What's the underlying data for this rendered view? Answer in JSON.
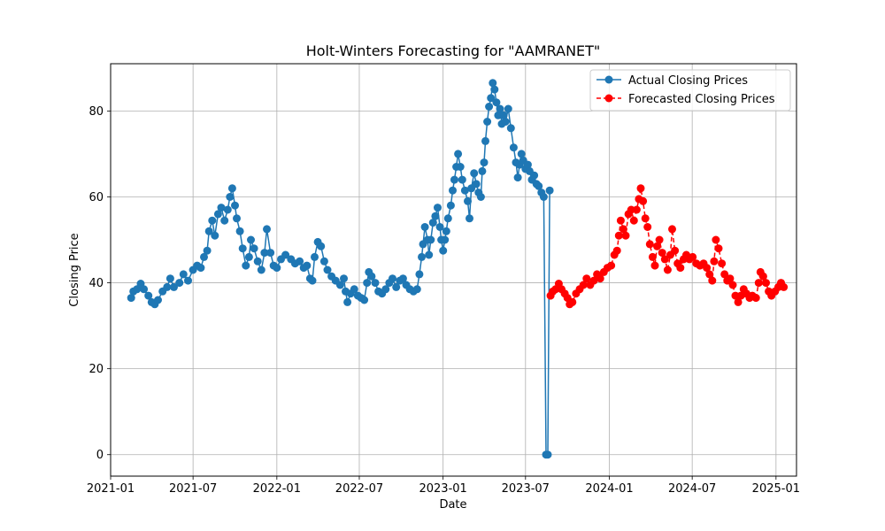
{
  "chart_data": {
    "type": "line",
    "title": "Holt-Winters Forecasting for \"AAMRANET\"",
    "xlabel": "Date",
    "ylabel": "Closing Price",
    "xlim": [
      "2021-01-01",
      "2025-02-15"
    ],
    "ylim": [
      -5,
      91
    ],
    "x_ticks": [
      "2021-01",
      "2021-07",
      "2022-01",
      "2022-07",
      "2023-01",
      "2023-07",
      "2024-01",
      "2024-07",
      "2025-01"
    ],
    "y_ticks": [
      0,
      20,
      40,
      60,
      80
    ],
    "grid": true,
    "legend_position": "top-right",
    "series": [
      {
        "name": "Actual Closing Prices",
        "color": "#1f77b4",
        "marker": "circle",
        "line": "solid",
        "points": [
          [
            "2021-02-15",
            36.5
          ],
          [
            "2021-02-20",
            38.0
          ],
          [
            "2021-02-28",
            38.5
          ],
          [
            "2021-03-08",
            39.8
          ],
          [
            "2021-03-15",
            38.5
          ],
          [
            "2021-03-25",
            37.0
          ],
          [
            "2021-04-01",
            35.5
          ],
          [
            "2021-04-08",
            35.0
          ],
          [
            "2021-04-15",
            36.0
          ],
          [
            "2021-04-25",
            38.0
          ],
          [
            "2021-05-05",
            39.0
          ],
          [
            "2021-05-12",
            41.0
          ],
          [
            "2021-05-20",
            39.0
          ],
          [
            "2021-06-01",
            40.0
          ],
          [
            "2021-06-10",
            42.0
          ],
          [
            "2021-06-20",
            40.5
          ],
          [
            "2021-07-01",
            43.0
          ],
          [
            "2021-07-10",
            44.0
          ],
          [
            "2021-07-18",
            43.5
          ],
          [
            "2021-07-25",
            46.0
          ],
          [
            "2021-08-01",
            47.5
          ],
          [
            "2021-08-05",
            52.0
          ],
          [
            "2021-08-12",
            54.5
          ],
          [
            "2021-08-18",
            51.0
          ],
          [
            "2021-08-25",
            56.0
          ],
          [
            "2021-09-01",
            57.5
          ],
          [
            "2021-09-08",
            54.5
          ],
          [
            "2021-09-15",
            57.0
          ],
          [
            "2021-09-20",
            60.0
          ],
          [
            "2021-09-25",
            62.0
          ],
          [
            "2021-10-01",
            58.0
          ],
          [
            "2021-10-05",
            55.0
          ],
          [
            "2021-10-12",
            52.0
          ],
          [
            "2021-10-18",
            48.0
          ],
          [
            "2021-10-25",
            44.0
          ],
          [
            "2021-11-01",
            46.0
          ],
          [
            "2021-11-05",
            50.0
          ],
          [
            "2021-11-12",
            48.0
          ],
          [
            "2021-11-20",
            45.0
          ],
          [
            "2021-11-28",
            43.0
          ],
          [
            "2021-12-05",
            47.0
          ],
          [
            "2021-12-10",
            52.5
          ],
          [
            "2021-12-18",
            47.0
          ],
          [
            "2021-12-25",
            44.0
          ],
          [
            "2022-01-01",
            43.5
          ],
          [
            "2022-01-10",
            45.5
          ],
          [
            "2022-01-20",
            46.5
          ],
          [
            "2022-02-01",
            45.5
          ],
          [
            "2022-02-10",
            44.5
          ],
          [
            "2022-02-20",
            45.0
          ],
          [
            "2022-03-01",
            43.5
          ],
          [
            "2022-03-08",
            44.0
          ],
          [
            "2022-03-15",
            41.0
          ],
          [
            "2022-03-20",
            40.5
          ],
          [
            "2022-03-25",
            46.0
          ],
          [
            "2022-04-01",
            49.5
          ],
          [
            "2022-04-08",
            48.5
          ],
          [
            "2022-04-15",
            45.0
          ],
          [
            "2022-04-22",
            43.0
          ],
          [
            "2022-05-01",
            41.5
          ],
          [
            "2022-05-10",
            40.5
          ],
          [
            "2022-05-20",
            39.5
          ],
          [
            "2022-05-28",
            41.0
          ],
          [
            "2022-06-01",
            38.0
          ],
          [
            "2022-06-05",
            35.5
          ],
          [
            "2022-06-12",
            37.5
          ],
          [
            "2022-06-20",
            38.5
          ],
          [
            "2022-06-28",
            37.0
          ],
          [
            "2022-07-05",
            36.5
          ],
          [
            "2022-07-12",
            36.0
          ],
          [
            "2022-07-18",
            40.0
          ],
          [
            "2022-07-22",
            42.5
          ],
          [
            "2022-07-28",
            41.5
          ],
          [
            "2022-08-05",
            40.0
          ],
          [
            "2022-08-12",
            38.0
          ],
          [
            "2022-08-20",
            37.5
          ],
          [
            "2022-08-28",
            38.5
          ],
          [
            "2022-09-05",
            40.0
          ],
          [
            "2022-09-12",
            41.0
          ],
          [
            "2022-09-20",
            39.0
          ],
          [
            "2022-09-28",
            40.5
          ],
          [
            "2022-10-05",
            41.0
          ],
          [
            "2022-10-12",
            39.5
          ],
          [
            "2022-10-20",
            38.5
          ],
          [
            "2022-10-28",
            38.0
          ],
          [
            "2022-11-05",
            38.5
          ],
          [
            "2022-11-10",
            42.0
          ],
          [
            "2022-11-15",
            46.0
          ],
          [
            "2022-11-18",
            49.0
          ],
          [
            "2022-11-22",
            53.0
          ],
          [
            "2022-11-28",
            50.0
          ],
          [
            "2022-12-01",
            46.5
          ],
          [
            "2022-12-05",
            50.0
          ],
          [
            "2022-12-10",
            54.0
          ],
          [
            "2022-12-15",
            55.5
          ],
          [
            "2022-12-20",
            57.5
          ],
          [
            "2022-12-25",
            53.0
          ],
          [
            "2022-12-28",
            50.0
          ],
          [
            "2023-01-01",
            47.5
          ],
          [
            "2023-01-05",
            50.0
          ],
          [
            "2023-01-08",
            52.0
          ],
          [
            "2023-01-12",
            55.0
          ],
          [
            "2023-01-18",
            58.0
          ],
          [
            "2023-01-22",
            61.5
          ],
          [
            "2023-01-26",
            64.0
          ],
          [
            "2023-01-30",
            67.0
          ],
          [
            "2023-02-03",
            70.0
          ],
          [
            "2023-02-08",
            67.0
          ],
          [
            "2023-02-12",
            64.0
          ],
          [
            "2023-02-18",
            61.5
          ],
          [
            "2023-02-24",
            59.0
          ],
          [
            "2023-02-28",
            55.0
          ],
          [
            "2023-03-04",
            62.0
          ],
          [
            "2023-03-10",
            65.5
          ],
          [
            "2023-03-15",
            63.0
          ],
          [
            "2023-03-20",
            61.0
          ],
          [
            "2023-03-25",
            60.0
          ],
          [
            "2023-03-28",
            66.0
          ],
          [
            "2023-04-01",
            68.0
          ],
          [
            "2023-04-04",
            73.0
          ],
          [
            "2023-04-08",
            77.5
          ],
          [
            "2023-04-12",
            81.0
          ],
          [
            "2023-04-16",
            83.0
          ],
          [
            "2023-04-20",
            86.5
          ],
          [
            "2023-04-24",
            85.0
          ],
          [
            "2023-04-28",
            82.0
          ],
          [
            "2023-05-02",
            79.0
          ],
          [
            "2023-05-06",
            80.5
          ],
          [
            "2023-05-10",
            77.0
          ],
          [
            "2023-05-14",
            79.0
          ],
          [
            "2023-05-18",
            77.5
          ],
          [
            "2023-05-24",
            80.5
          ],
          [
            "2023-05-30",
            76.0
          ],
          [
            "2023-06-05",
            71.5
          ],
          [
            "2023-06-10",
            68.0
          ],
          [
            "2023-06-14",
            64.5
          ],
          [
            "2023-06-18",
            67.5
          ],
          [
            "2023-06-22",
            70.0
          ],
          [
            "2023-06-26",
            68.5
          ],
          [
            "2023-07-01",
            66.5
          ],
          [
            "2023-07-06",
            67.5
          ],
          [
            "2023-07-10",
            66.0
          ],
          [
            "2023-07-15",
            64.0
          ],
          [
            "2023-07-20",
            65.0
          ],
          [
            "2023-07-25",
            63.0
          ],
          [
            "2023-07-30",
            62.5
          ],
          [
            "2023-08-05",
            61.0
          ],
          [
            "2023-08-10",
            60.0
          ],
          [
            "2023-08-15",
            0.0
          ],
          [
            "2023-08-19",
            0.0
          ],
          [
            "2023-08-23",
            61.5
          ]
        ]
      },
      {
        "name": "Forecasted Closing Prices",
        "color": "#ff0000",
        "marker": "circle",
        "line": "dashed",
        "points": [
          [
            "2023-08-25",
            37.0
          ],
          [
            "2023-08-30",
            38.0
          ],
          [
            "2023-09-05",
            38.5
          ],
          [
            "2023-09-12",
            39.8
          ],
          [
            "2023-09-18",
            38.5
          ],
          [
            "2023-09-25",
            37.5
          ],
          [
            "2023-10-01",
            36.5
          ],
          [
            "2023-10-06",
            35.0
          ],
          [
            "2023-10-12",
            35.5
          ],
          [
            "2023-10-20",
            37.5
          ],
          [
            "2023-10-28",
            38.5
          ],
          [
            "2023-11-05",
            39.5
          ],
          [
            "2023-11-12",
            41.0
          ],
          [
            "2023-11-20",
            39.5
          ],
          [
            "2023-11-28",
            40.5
          ],
          [
            "2023-12-05",
            42.0
          ],
          [
            "2023-12-12",
            41.0
          ],
          [
            "2023-12-20",
            42.5
          ],
          [
            "2023-12-28",
            43.5
          ],
          [
            "2024-01-05",
            44.0
          ],
          [
            "2024-01-12",
            46.5
          ],
          [
            "2024-01-18",
            47.5
          ],
          [
            "2024-01-22",
            51.0
          ],
          [
            "2024-01-26",
            54.5
          ],
          [
            "2024-02-01",
            52.5
          ],
          [
            "2024-02-06",
            51.0
          ],
          [
            "2024-02-12",
            56.0
          ],
          [
            "2024-02-18",
            57.0
          ],
          [
            "2024-02-24",
            54.5
          ],
          [
            "2024-03-01",
            57.0
          ],
          [
            "2024-03-06",
            59.5
          ],
          [
            "2024-03-10",
            62.0
          ],
          [
            "2024-03-15",
            59.0
          ],
          [
            "2024-03-20",
            55.0
          ],
          [
            "2024-03-25",
            53.0
          ],
          [
            "2024-03-30",
            49.0
          ],
          [
            "2024-04-05",
            46.0
          ],
          [
            "2024-04-10",
            44.0
          ],
          [
            "2024-04-15",
            48.5
          ],
          [
            "2024-04-20",
            50.0
          ],
          [
            "2024-04-26",
            47.0
          ],
          [
            "2024-05-02",
            45.5
          ],
          [
            "2024-05-08",
            43.0
          ],
          [
            "2024-05-14",
            46.5
          ],
          [
            "2024-05-18",
            52.5
          ],
          [
            "2024-05-24",
            47.5
          ],
          [
            "2024-05-30",
            44.5
          ],
          [
            "2024-06-05",
            43.5
          ],
          [
            "2024-06-12",
            45.5
          ],
          [
            "2024-06-18",
            46.5
          ],
          [
            "2024-06-25",
            45.5
          ],
          [
            "2024-07-02",
            46.0
          ],
          [
            "2024-07-10",
            44.5
          ],
          [
            "2024-07-18",
            44.0
          ],
          [
            "2024-07-26",
            44.5
          ],
          [
            "2024-08-02",
            43.5
          ],
          [
            "2024-08-08",
            42.0
          ],
          [
            "2024-08-14",
            40.5
          ],
          [
            "2024-08-18",
            45.0
          ],
          [
            "2024-08-22",
            50.0
          ],
          [
            "2024-08-28",
            48.0
          ],
          [
            "2024-09-04",
            44.5
          ],
          [
            "2024-09-10",
            42.0
          ],
          [
            "2024-09-16",
            40.5
          ],
          [
            "2024-09-22",
            41.0
          ],
          [
            "2024-09-28",
            39.5
          ],
          [
            "2024-10-04",
            37.0
          ],
          [
            "2024-10-10",
            35.5
          ],
          [
            "2024-10-16",
            37.0
          ],
          [
            "2024-10-22",
            38.5
          ],
          [
            "2024-10-28",
            37.5
          ],
          [
            "2024-11-04",
            36.5
          ],
          [
            "2024-11-10",
            37.0
          ],
          [
            "2024-11-18",
            36.5
          ],
          [
            "2024-11-24",
            40.0
          ],
          [
            "2024-11-28",
            42.5
          ],
          [
            "2024-12-04",
            41.5
          ],
          [
            "2024-12-10",
            40.0
          ],
          [
            "2024-12-16",
            38.0
          ],
          [
            "2024-12-22",
            37.0
          ],
          [
            "2024-12-30",
            38.0
          ],
          [
            "2025-01-06",
            39.0
          ],
          [
            "2025-01-12",
            40.0
          ],
          [
            "2025-01-18",
            39.0
          ]
        ]
      }
    ]
  }
}
